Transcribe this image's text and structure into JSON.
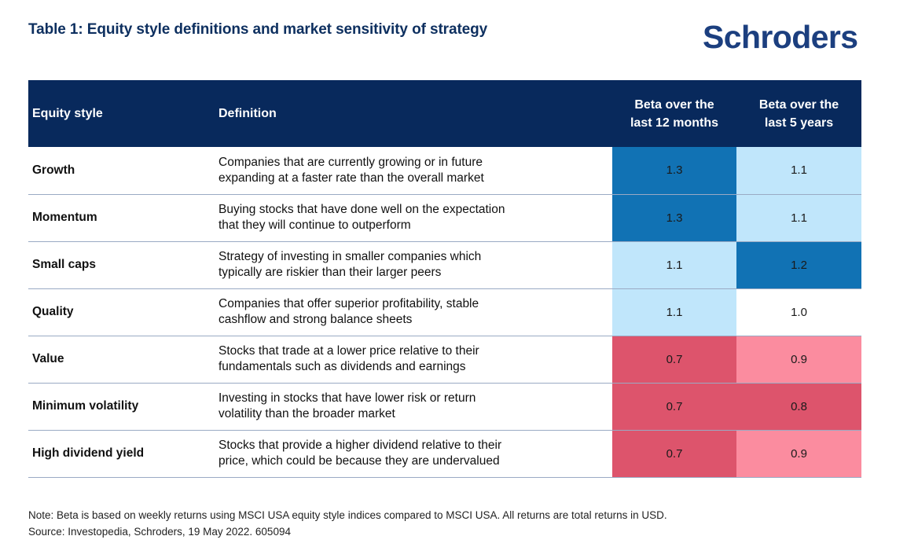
{
  "header": {
    "title": "Table 1: Equity style definitions and market sensitivity of strategy",
    "logo": "Schroders"
  },
  "colors": {
    "header_bg": "#08295c",
    "high_beta_strong": "#1172b4",
    "high_beta_light": "#c0e6fb",
    "neutral": "#ffffff",
    "low_beta_strong": "#dd546c",
    "low_beta_light": "#fb8c9f"
  },
  "table": {
    "columns": [
      "Equity style",
      "Definition",
      "Beta over the last 12 months",
      "Beta over the last 5 years"
    ],
    "column_lines": [
      [
        "Equity style"
      ],
      [
        "Definition"
      ],
      [
        "Beta over the",
        "last 12 months"
      ],
      [
        "Beta over the",
        "last 5 years"
      ]
    ],
    "rows": [
      {
        "style": "Growth",
        "definition": [
          "Companies that are currently growing or in future",
          "expanding at a faster rate than the overall market"
        ],
        "beta_12m": "1.3",
        "beta_12m_color": "#1172b4",
        "beta_5y": "1.1",
        "beta_5y_color": "#c0e6fb"
      },
      {
        "style": "Momentum",
        "definition": [
          "Buying stocks that have done well on the expectation",
          "that they will continue to outperform"
        ],
        "beta_12m": "1.3",
        "beta_12m_color": "#1172b4",
        "beta_5y": "1.1",
        "beta_5y_color": "#c0e6fb"
      },
      {
        "style": "Small caps",
        "definition": [
          "Strategy of investing in smaller companies which",
          "typically are riskier than their larger peers"
        ],
        "beta_12m": "1.1",
        "beta_12m_color": "#c0e6fb",
        "beta_5y": "1.2",
        "beta_5y_color": "#1172b4"
      },
      {
        "style": "Quality",
        "definition": [
          "Companies that offer superior profitability, stable",
          "cashflow and strong balance sheets"
        ],
        "beta_12m": "1.1",
        "beta_12m_color": "#c0e6fb",
        "beta_5y": "1.0",
        "beta_5y_color": "#ffffff"
      },
      {
        "style": "Value",
        "definition": [
          "Stocks that trade at a lower price relative to their",
          "fundamentals such as dividends and earnings"
        ],
        "beta_12m": "0.7",
        "beta_12m_color": "#dd546c",
        "beta_5y": "0.9",
        "beta_5y_color": "#fb8c9f"
      },
      {
        "style": "Minimum volatility",
        "definition": [
          "Investing in stocks that have lower risk or return",
          "volatility than the broader market"
        ],
        "beta_12m": "0.7",
        "beta_12m_color": "#dd546c",
        "beta_5y": "0.8",
        "beta_5y_color": "#dd546c"
      },
      {
        "style": "High dividend yield",
        "definition": [
          "Stocks that provide a higher dividend relative to their",
          "price, which could be because they are undervalued"
        ],
        "beta_12m": "0.7",
        "beta_12m_color": "#dd546c",
        "beta_5y": "0.9",
        "beta_5y_color": "#fb8c9f"
      }
    ]
  },
  "footer": {
    "note": "Note: Beta is based on weekly returns using MSCI USA equity style indices compared to MSCI USA. All returns are total returns in USD.",
    "source": "Source: Investopedia, Schroders, 19 May 2022. 605094"
  }
}
